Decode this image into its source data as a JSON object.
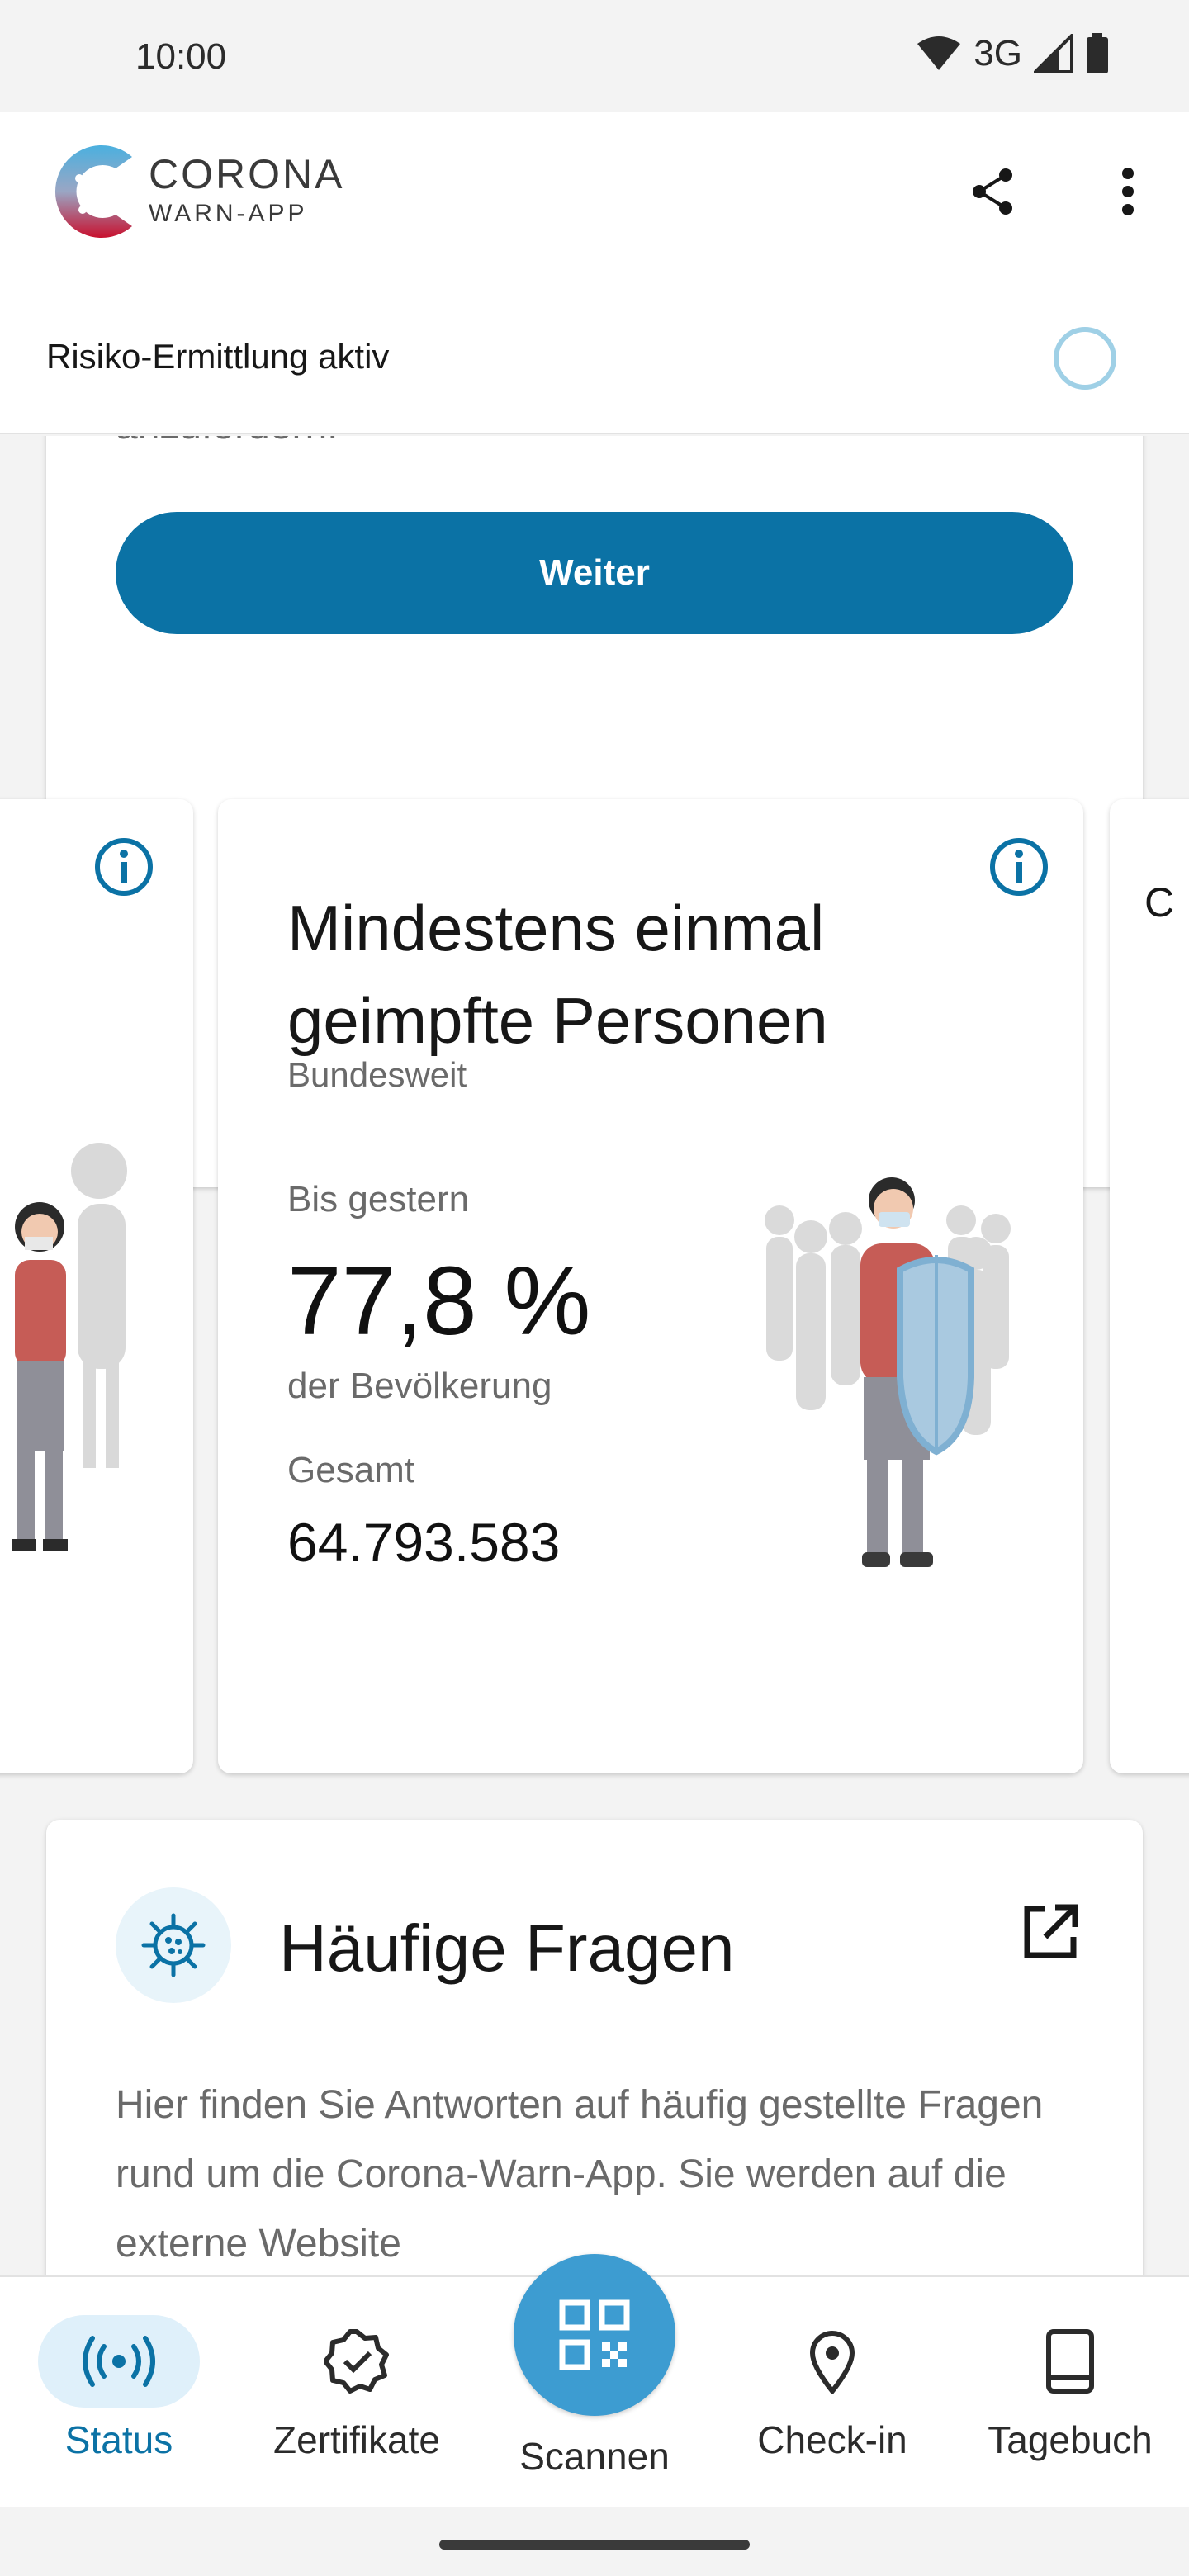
{
  "statusbar": {
    "time": "10:00",
    "network": "3G"
  },
  "header": {
    "brand_line1": "CORONA",
    "brand_line2": "WARN-APP",
    "risk_label": "Risiko-Ermittlung aktiv"
  },
  "top_card": {
    "tail_text": "anzufordern.",
    "button_label": "Weiter"
  },
  "stat_card": {
    "title": "Mindestens einmal geimpfte Personen",
    "subtitle": "Bundesweit",
    "since_label": "Bis gestern",
    "percent": "77,8 %",
    "population_label": "der Bevölkerung",
    "total_label": "Gesamt",
    "total_value": "64.793.583"
  },
  "faq_card": {
    "title": "Häufige Fragen",
    "body": "Hier finden Sie Antworten auf häufig gestellte Fragen rund um die Corona-Warn-App. Sie werden auf die externe Website"
  },
  "nav": {
    "items": [
      {
        "label": "Status",
        "icon": "broadcast-icon",
        "active": true
      },
      {
        "label": "Zertifikate",
        "icon": "certificate-icon",
        "active": false
      },
      {
        "label": "Scannen",
        "icon": "qr-code-icon",
        "active": false
      },
      {
        "label": "Check-in",
        "icon": "location-pin-icon",
        "active": false
      },
      {
        "label": "Tagebuch",
        "icon": "book-icon",
        "active": false
      }
    ]
  },
  "colors": {
    "primary": "#0b72a5",
    "fab": "#3d9cd1",
    "risk_ring": "#9fd0e6",
    "active_pill": "#dff0fa"
  }
}
